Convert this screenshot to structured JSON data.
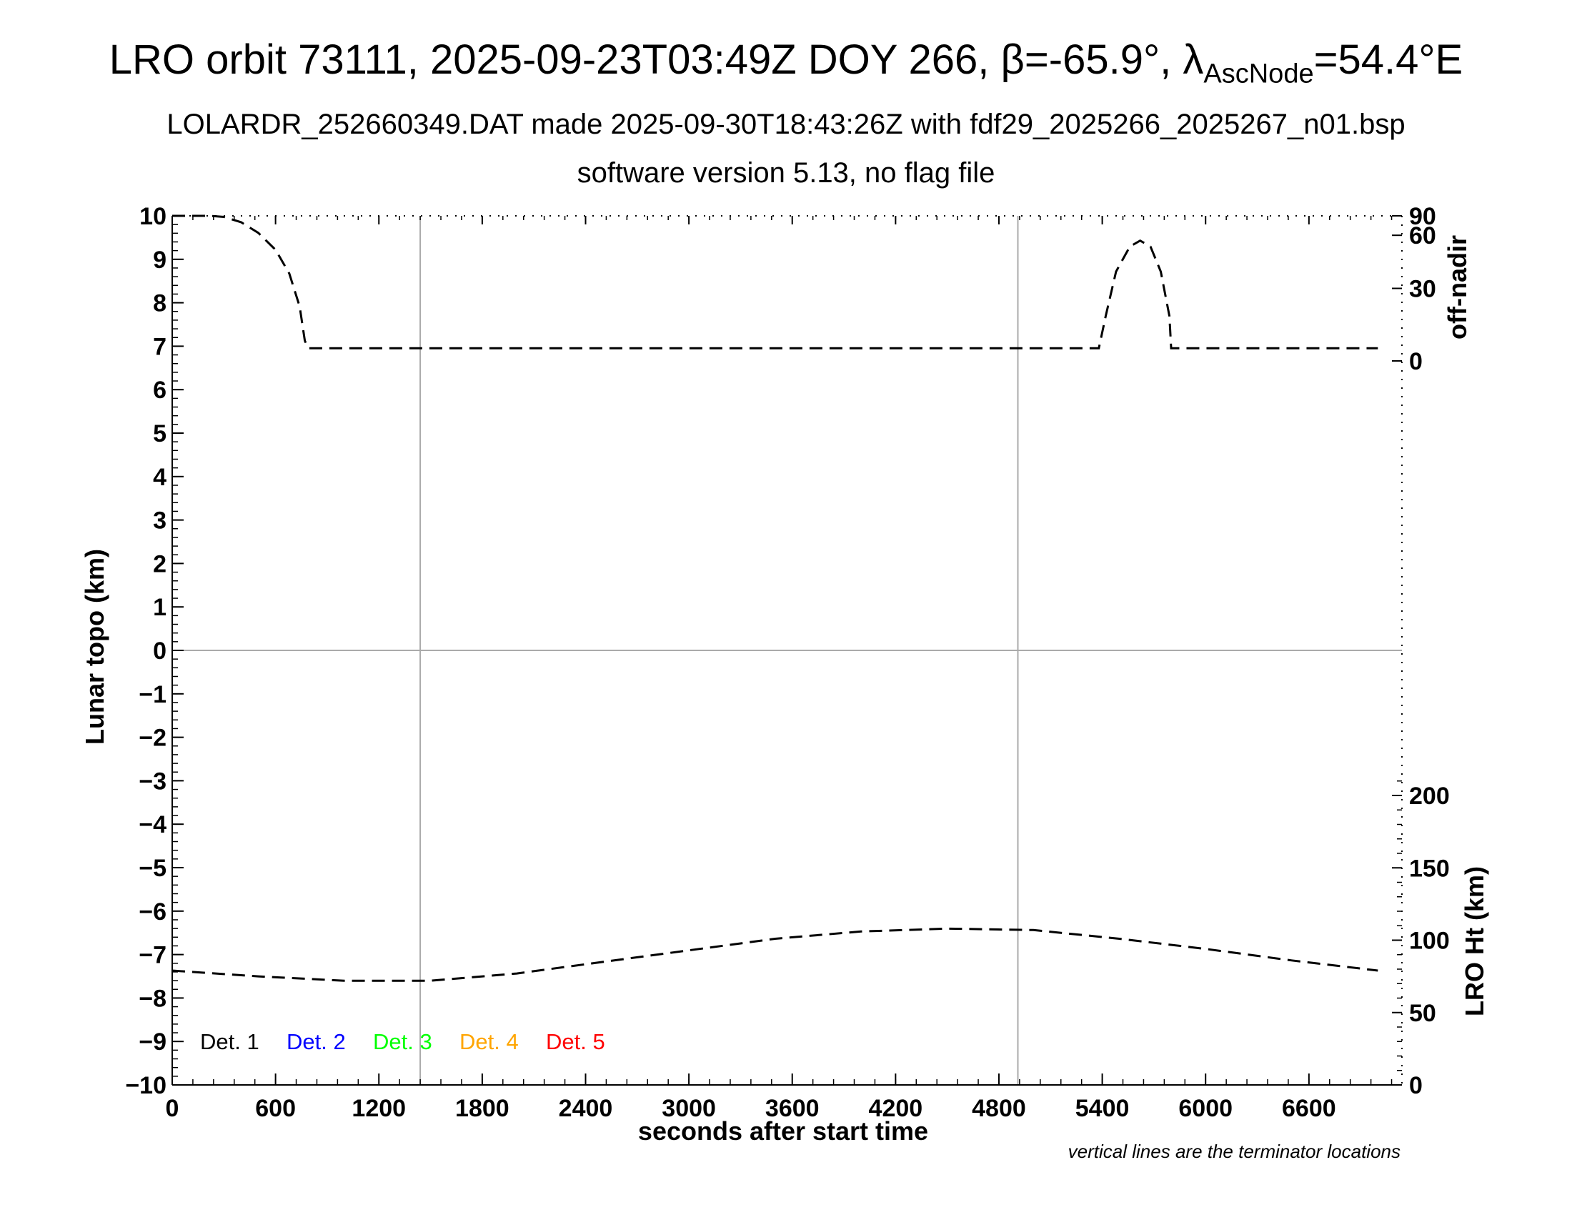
{
  "header": {
    "title_pre": "LRO orbit 73111, 2025-09-23T03:49Z DOY 266, ",
    "beta_symbol": "β",
    "beta_value": "=-65.9°, ",
    "lambda_symbol": "λ",
    "lambda_sub": "AscNode",
    "lambda_value": "=54.4°E",
    "subtitle": "LOLARDR_252660349.DAT made 2025-09-30T18:43:26Z with fdf29_2025266_2025267_n01.bsp",
    "subtitle2": "software version 5.13, no flag file"
  },
  "chart_data": {
    "type": "line",
    "xlabel": "seconds after start time",
    "ylabel_left": "Lunar topo (km)",
    "ylabel_right_top": "off-nadir",
    "ylabel_right_bottom": "LRO Ht (km)",
    "note": "vertical lines are the terminator locations",
    "xlim": [
      0,
      7140
    ],
    "ylim_left": [
      -10,
      10
    ],
    "x_ticks": [
      "0",
      "600",
      "1200",
      "1800",
      "2400",
      "3000",
      "3600",
      "4200",
      "4800",
      "5400",
      "6000",
      "6600"
    ],
    "x_tick_values": [
      0,
      600,
      1200,
      1800,
      2400,
      3000,
      3600,
      4200,
      4800,
      5400,
      6000,
      6600
    ],
    "y_ticks_left": [
      "10",
      "9",
      "8",
      "7",
      "6",
      "5",
      "4",
      "3",
      "2",
      "1",
      "0",
      "−1",
      "−2",
      "−3",
      "−4",
      "−5",
      "−6",
      "−7",
      "−8",
      "−9",
      "−10"
    ],
    "y_tick_values_left": [
      10,
      9,
      8,
      7,
      6,
      5,
      4,
      3,
      2,
      1,
      0,
      -1,
      -2,
      -3,
      -4,
      -5,
      -6,
      -7,
      -8,
      -9,
      -10
    ],
    "off_nadir_ticks": [
      "90",
      "60",
      "30",
      "0"
    ],
    "off_nadir_tick_values": [
      90,
      60,
      30,
      0
    ],
    "height_ticks": [
      "200",
      "150",
      "100",
      "50",
      "0"
    ],
    "height_tick_values": [
      200,
      150,
      100,
      50,
      0
    ],
    "terminators": [
      1440,
      4910
    ],
    "legend": [
      {
        "label": "Det. 1",
        "color": "#000000"
      },
      {
        "label": "Det. 2",
        "color": "#0000ff"
      },
      {
        "label": "Det. 3",
        "color": "#00ff00"
      },
      {
        "label": "Det. 4",
        "color": "#ffa500"
      },
      {
        "label": "Det. 5",
        "color": "#ff0000"
      }
    ],
    "series": [
      {
        "axis": "off-nadir",
        "x": [
          0,
          220,
          300,
          400,
          500,
          600,
          680,
          740,
          770,
          790,
          1000,
          2000,
          3000,
          4000,
          5000,
          5300,
          5380,
          5420,
          5480,
          5560,
          5620,
          5680,
          5740,
          5790,
          5800,
          6000,
          7000
        ],
        "values": [
          90,
          90,
          83,
          73,
          62,
          50,
          37,
          22,
          8,
          5,
          5,
          5,
          5,
          5,
          5,
          5,
          5,
          18,
          38,
          52,
          56,
          52,
          38,
          18,
          5,
          5,
          5
        ]
      },
      {
        "axis": "height",
        "x": [
          0,
          500,
          1000,
          1500,
          2000,
          2500,
          3000,
          3500,
          4000,
          4500,
          5000,
          5500,
          6000,
          6500,
          7000
        ],
        "values": [
          79,
          75,
          72,
          72,
          77,
          85,
          93,
          101,
          106,
          108,
          107,
          101,
          94,
          86,
          79
        ]
      }
    ]
  }
}
